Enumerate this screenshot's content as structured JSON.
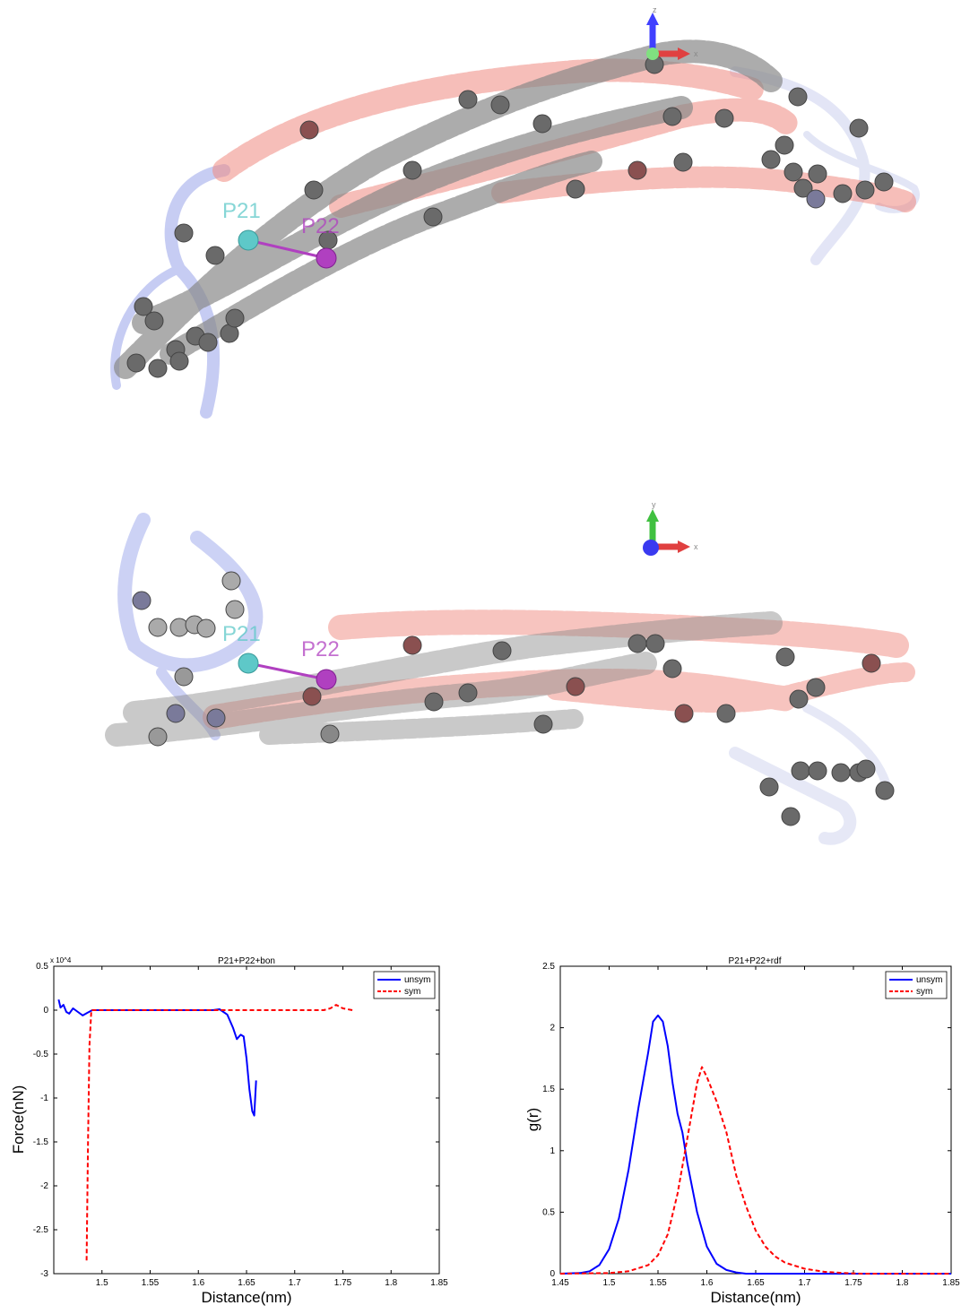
{
  "structures": [
    {
      "view": "side",
      "axes": {
        "vertical": "z",
        "horizontal": "x"
      },
      "site_labels": {
        "a": "P21",
        "b": "P22"
      },
      "colors": {
        "helix_gray": "#8a8a8a",
        "helix_red": "#f08a80",
        "domain_blue": "#8f9be8",
        "bead": "#6a6a6a",
        "p21": "#5ec8c8",
        "p22": "#b040c0"
      }
    },
    {
      "view": "top",
      "axes": {
        "vertical": "y",
        "horizontal": "x"
      },
      "site_labels": {
        "a": "P21",
        "b": "P22"
      },
      "colors": {
        "helix_gray": "#8a8a8a",
        "helix_red": "#f08a80",
        "domain_blue": "#8f9be8",
        "bead": "#6a6a6a",
        "p21": "#5ec8c8",
        "p22": "#b040c0"
      }
    }
  ],
  "chart_data": [
    {
      "type": "line",
      "title": "P21+P22+bon",
      "xlabel": "Distance(nm)",
      "ylabel": "Force(nN)",
      "y_multiplier": "x 10^4",
      "xlim": [
        1.45,
        1.85
      ],
      "ylim": [
        -3,
        0.5
      ],
      "xticks": [
        1.5,
        1.55,
        1.6,
        1.65,
        1.7,
        1.75,
        1.8,
        1.85
      ],
      "yticks": [
        0.5,
        0,
        -0.5,
        -1,
        -1.5,
        -2,
        -2.5,
        -3
      ],
      "legend_position": "top-right",
      "series": [
        {
          "name": "unsym",
          "color": "#0000ff",
          "style": "solid",
          "x": [
            1.455,
            1.457,
            1.46,
            1.463,
            1.466,
            1.47,
            1.475,
            1.48,
            1.485,
            1.49,
            1.5,
            1.55,
            1.6,
            1.615,
            1.622,
            1.63,
            1.636,
            1.64,
            1.644,
            1.647,
            1.65,
            1.653,
            1.656,
            1.658,
            1.66
          ],
          "y": [
            0.12,
            0.03,
            0.06,
            -0.02,
            -0.04,
            0.02,
            -0.02,
            -0.06,
            -0.03,
            0,
            0,
            0,
            0,
            0,
            0.01,
            -0.05,
            -0.2,
            -0.33,
            -0.28,
            -0.3,
            -0.55,
            -0.9,
            -1.15,
            -1.2,
            -0.8
          ]
        },
        {
          "name": "sym",
          "color": "#ff0000",
          "style": "dashed",
          "x": [
            1.484,
            1.4855,
            1.487,
            1.489,
            1.5,
            1.6,
            1.7,
            1.73,
            1.737,
            1.743,
            1.75,
            1.76
          ],
          "y": [
            -2.85,
            -1.5,
            -0.4,
            0,
            0,
            0,
            0,
            0,
            0.02,
            0.06,
            0.02,
            0
          ]
        }
      ]
    },
    {
      "type": "line",
      "title": "P21+P22+rdf",
      "xlabel": "Distance(nm)",
      "ylabel": "g(r)",
      "xlim": [
        1.45,
        1.85
      ],
      "ylim": [
        0,
        2.5
      ],
      "xticks": [
        1.45,
        1.5,
        1.55,
        1.6,
        1.65,
        1.7,
        1.75,
        1.8,
        1.85
      ],
      "yticks": [
        2.5,
        2,
        1.5,
        1,
        0.5,
        0
      ],
      "legend_position": "top-right",
      "series": [
        {
          "name": "unsym",
          "color": "#0000ff",
          "style": "solid",
          "x": [
            1.45,
            1.47,
            1.48,
            1.49,
            1.5,
            1.51,
            1.52,
            1.53,
            1.54,
            1.545,
            1.55,
            1.555,
            1.56,
            1.565,
            1.57,
            1.575,
            1.58,
            1.59,
            1.6,
            1.61,
            1.62,
            1.63,
            1.64,
            1.85
          ],
          "y": [
            0,
            0.005,
            0.02,
            0.07,
            0.2,
            0.45,
            0.85,
            1.35,
            1.8,
            2.05,
            2.1,
            2.05,
            1.85,
            1.55,
            1.3,
            1.15,
            0.9,
            0.5,
            0.22,
            0.08,
            0.03,
            0.01,
            0,
            0
          ]
        },
        {
          "name": "sym",
          "color": "#ff0000",
          "style": "dashed",
          "x": [
            1.45,
            1.5,
            1.52,
            1.54,
            1.55,
            1.56,
            1.57,
            1.58,
            1.59,
            1.595,
            1.6,
            1.61,
            1.62,
            1.63,
            1.64,
            1.65,
            1.66,
            1.67,
            1.68,
            1.7,
            1.72,
            1.74,
            1.76,
            1.85
          ],
          "y": [
            0,
            0.005,
            0.02,
            0.07,
            0.15,
            0.32,
            0.65,
            1.1,
            1.55,
            1.68,
            1.6,
            1.4,
            1.15,
            0.8,
            0.55,
            0.35,
            0.22,
            0.14,
            0.09,
            0.04,
            0.015,
            0.005,
            0,
            0
          ]
        }
      ]
    }
  ]
}
